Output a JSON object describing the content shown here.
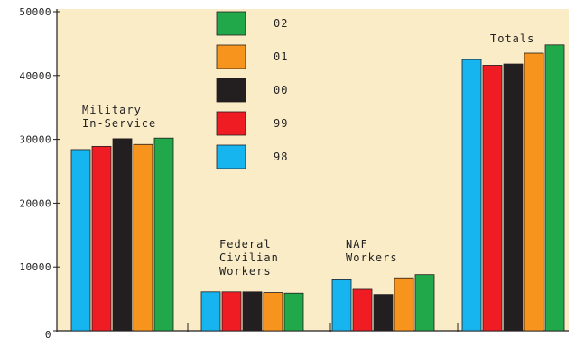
{
  "chart_data": {
    "type": "bar",
    "title": "",
    "xlabel": "",
    "ylabel": "",
    "ylim": [
      0,
      50000
    ],
    "yticks": [
      0,
      10000,
      20000,
      30000,
      40000,
      50000
    ],
    "grid": false,
    "background": "#fbecc8",
    "legend_position": "top-center",
    "categories": [
      [
        "Military",
        "In-Service"
      ],
      [
        "Federal",
        "Civilian",
        "Workers"
      ],
      [
        "NAF",
        "Workers"
      ],
      [
        "Totals"
      ]
    ],
    "series": [
      {
        "name": "98",
        "color": "#16b5ef",
        "values": [
          28400,
          6100,
          8000,
          42500
        ]
      },
      {
        "name": "99",
        "color": "#ef1c24",
        "values": [
          28900,
          6100,
          6500,
          41600
        ]
      },
      {
        "name": "00",
        "color": "#231f20",
        "values": [
          30100,
          6100,
          5700,
          41800
        ]
      },
      {
        "name": "01",
        "color": "#f7941d",
        "values": [
          29200,
          6000,
          8300,
          43500
        ]
      },
      {
        "name": "02",
        "color": "#21a84a",
        "values": [
          30200,
          5900,
          8800,
          44800
        ]
      }
    ],
    "legend_order": [
      "02",
      "01",
      "00",
      "99",
      "98"
    ]
  }
}
